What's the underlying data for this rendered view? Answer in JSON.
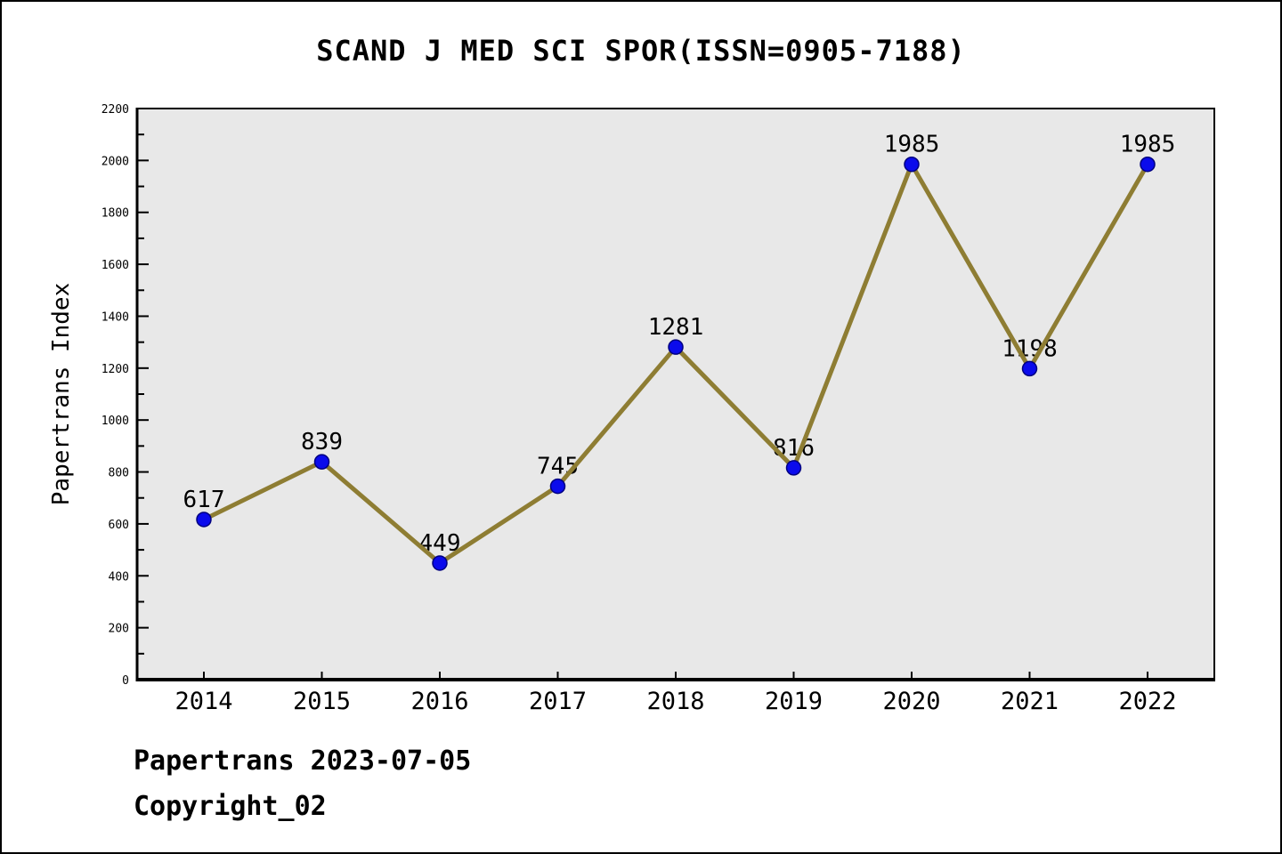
{
  "title": "SCAND J MED SCI SPOR(ISSN=0905-7188)",
  "footer": {
    "line1": "Papertrans 2023-07-05",
    "line2": "Copyright_02"
  },
  "chart_data": {
    "type": "line",
    "title": "SCAND J MED SCI SPOR(ISSN=0905-7188)",
    "x": [
      2014,
      2015,
      2016,
      2017,
      2018,
      2019,
      2020,
      2021,
      2022
    ],
    "series": [
      {
        "name": "Papertrans Index",
        "values": [
          617,
          839,
          449,
          745,
          1281,
          816,
          1985,
          1198,
          1985
        ]
      }
    ],
    "point_labels": [
      "617",
      "839",
      "449",
      "745",
      "1281",
      "816",
      "1985",
      "1198",
      "1985"
    ],
    "xlabel": "",
    "ylabel": "Papertrans Index",
    "ylim": [
      0,
      2200
    ],
    "yticks_major": [
      0,
      200,
      400,
      600,
      800,
      1000,
      1200,
      1400,
      1600,
      1800,
      2000,
      2200
    ],
    "ytick_minor_step": 100,
    "xticks": [
      "2014",
      "2015",
      "2016",
      "2017",
      "2018",
      "2019",
      "2020",
      "2021",
      "2022"
    ],
    "grid": false,
    "legend": "none",
    "marker": "circle",
    "colors": {
      "line": "#8e7d33",
      "marker_fill": "#0b0bec",
      "marker_edge": "#000080",
      "plot_background": "#e8e8e8",
      "axis": "#000000",
      "text": "#000000",
      "page_background": "#ffffff"
    }
  }
}
